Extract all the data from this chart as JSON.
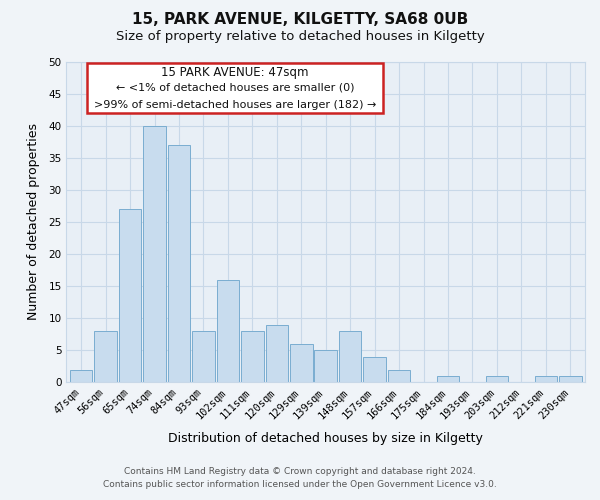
{
  "title": "15, PARK AVENUE, KILGETTY, SA68 0UB",
  "subtitle": "Size of property relative to detached houses in Kilgetty",
  "xlabel": "Distribution of detached houses by size in Kilgetty",
  "ylabel": "Number of detached properties",
  "categories": [
    "47sqm",
    "56sqm",
    "65sqm",
    "74sqm",
    "84sqm",
    "93sqm",
    "102sqm",
    "111sqm",
    "120sqm",
    "129sqm",
    "139sqm",
    "148sqm",
    "157sqm",
    "166sqm",
    "175sqm",
    "184sqm",
    "193sqm",
    "203sqm",
    "212sqm",
    "221sqm",
    "230sqm"
  ],
  "values": [
    2,
    8,
    27,
    40,
    37,
    8,
    16,
    8,
    9,
    6,
    5,
    8,
    4,
    2,
    0,
    1,
    0,
    1,
    0,
    1,
    1
  ],
  "bar_color": "#c8dcee",
  "bar_edge_color": "#7aadd0",
  "ylim": [
    0,
    50
  ],
  "yticks": [
    0,
    5,
    10,
    15,
    20,
    25,
    30,
    35,
    40,
    45,
    50
  ],
  "ann_line1": "15 PARK AVENUE: 47sqm",
  "ann_line2": "← <1% of detached houses are smaller (0)",
  "ann_line3": ">99% of semi-detached houses are larger (182) →",
  "footer_line1": "Contains HM Land Registry data © Crown copyright and database right 2024.",
  "footer_line2": "Contains public sector information licensed under the Open Government Licence v3.0.",
  "background_color": "#f0f4f8",
  "plot_bg_color": "#e8eff6",
  "grid_color": "#c8d8e8",
  "ann_box_edge": "#cc2222",
  "title_fontsize": 11,
  "subtitle_fontsize": 9.5,
  "axis_label_fontsize": 9,
  "tick_fontsize": 7.5,
  "footer_fontsize": 6.5,
  "ann_fontsize": 8.5
}
